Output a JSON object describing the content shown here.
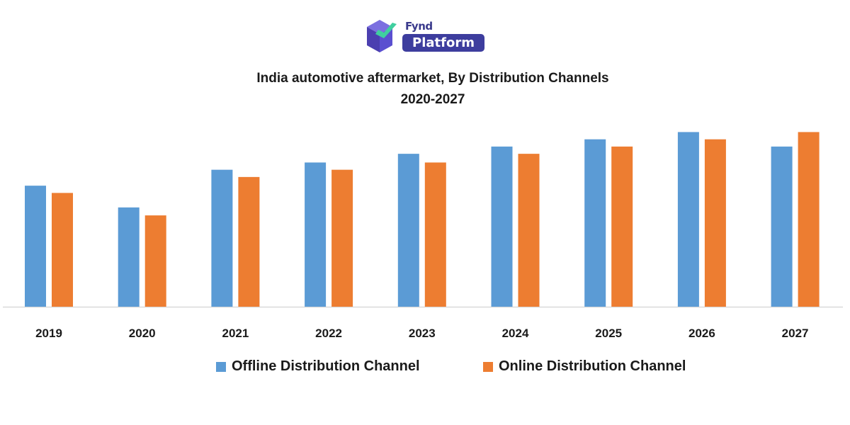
{
  "logo": {
    "top_text": "Fynd",
    "badge_text": "Platform",
    "colors": [
      "#6a5acd",
      "#3d3d9e",
      "#3fbf9f"
    ]
  },
  "chart_data": {
    "type": "bar",
    "title": "India automotive aftermarket, By Distribution Channels",
    "subtitle": "2020-2027",
    "xlabel": "",
    "ylabel": "",
    "categories": [
      "2019",
      "2020",
      "2021",
      "2022",
      "2023",
      "2024",
      "2025",
      "2026",
      "2027"
    ],
    "series": [
      {
        "name": "Offline Distribution Channel",
        "color": "#5b9bd5",
        "values": [
          16.7,
          13.7,
          18.9,
          19.9,
          21.1,
          22.1,
          23.1,
          24.1,
          22.1
        ]
      },
      {
        "name": "Online Distribution Channel",
        "color": "#ed7d31",
        "values": [
          15.7,
          12.6,
          17.9,
          18.9,
          19.9,
          21.1,
          22.1,
          23.1,
          24.1
        ]
      }
    ],
    "ylim": [
      0,
      26
    ],
    "grid": false,
    "legend_position": "bottom"
  }
}
